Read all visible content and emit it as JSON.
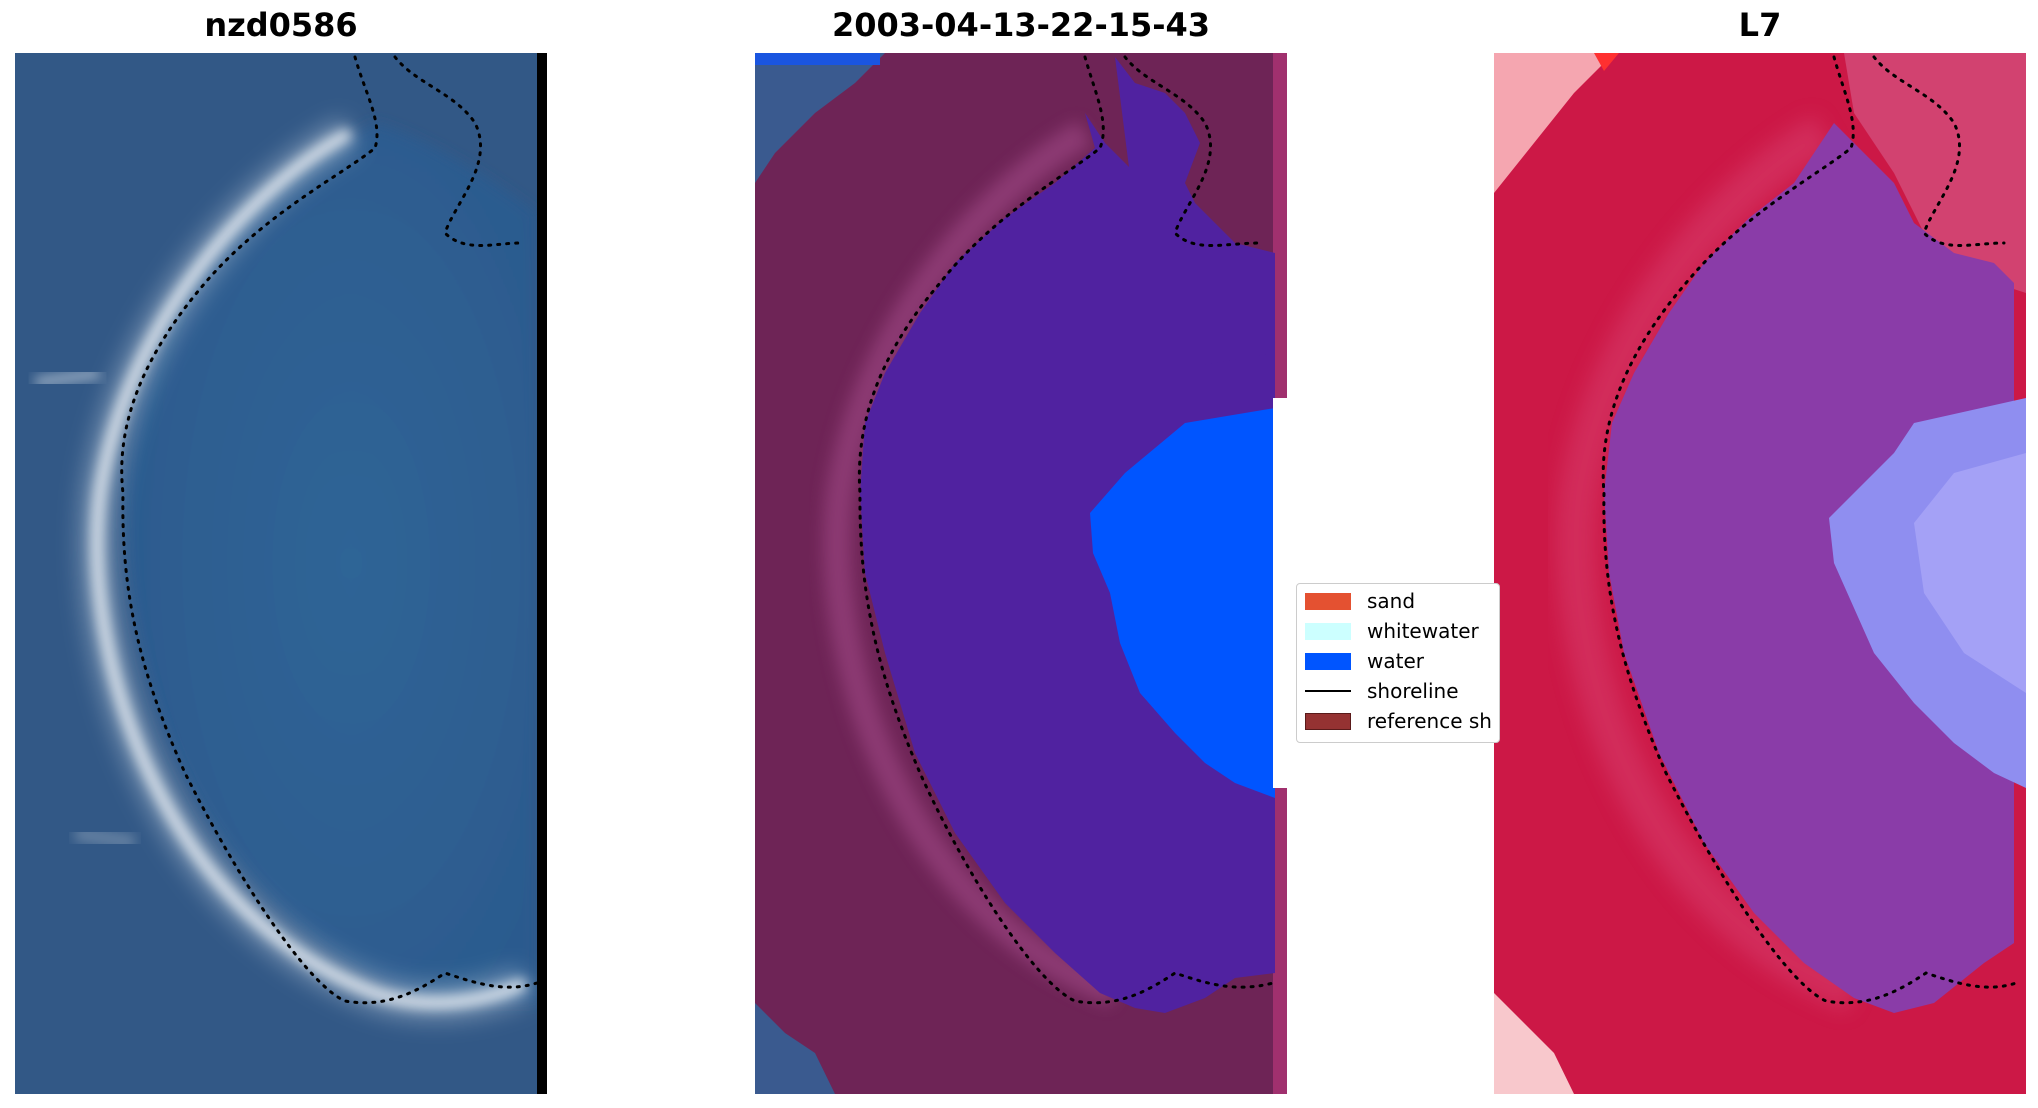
{
  "panels": [
    {
      "title": "nzd0586"
    },
    {
      "title": "2003-04-13-22-15-43"
    },
    {
      "title": "L7"
    }
  ],
  "legend": {
    "items": [
      {
        "label": "sand",
        "color": "#e45131"
      },
      {
        "label": "whitewater",
        "color": "#ccffff"
      },
      {
        "label": "water",
        "color": "#0055ff"
      },
      {
        "label": "shoreline",
        "color": "#000000"
      },
      {
        "label": "reference sh",
        "color": "#953232"
      }
    ]
  },
  "colors": {
    "sea": "#2f5585",
    "lagoon": "#3b6b98",
    "class_water_overlay": "#5022a0",
    "class_sand_overlay": "#6e2456",
    "index_land": "#cc1846",
    "index_water": "#8a3ca8"
  }
}
